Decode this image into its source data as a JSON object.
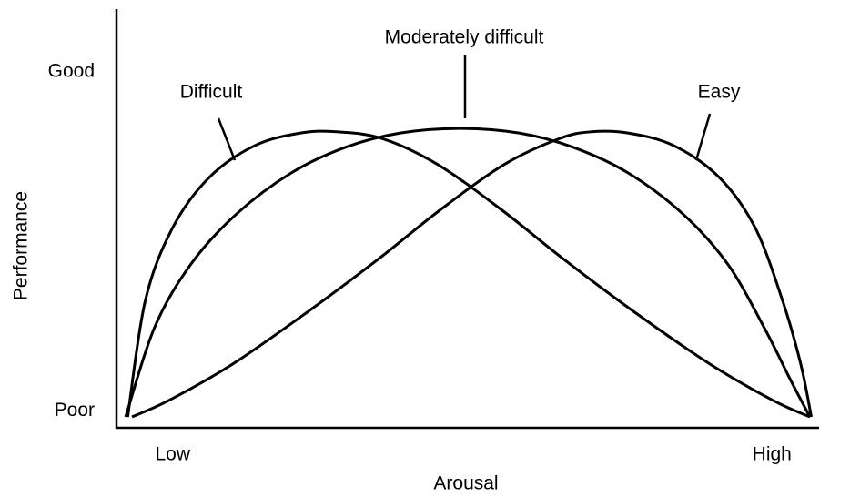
{
  "chart_data": {
    "type": "line",
    "x_label": "Arousal",
    "y_label": "Performance",
    "xlim": [
      0,
      100
    ],
    "ylim": [
      0,
      100
    ],
    "xticks": [
      {
        "value": 8,
        "label": "Low"
      },
      {
        "value": 93.3,
        "label": "High"
      }
    ],
    "yticks": [
      {
        "value": 4,
        "label": "Poor"
      },
      {
        "value": 85,
        "label": "Good"
      }
    ],
    "grid": false,
    "series": [
      {
        "name": "Difficult",
        "color": "#000000",
        "x": [
          1.6,
          4.1,
          8.0,
          13.2,
          19.7,
          26.2,
          31.3,
          37.8,
          45.6,
          54.7,
          63.7,
          74.1,
          84.5,
          93.5,
          98.7
        ],
        "values": [
          2.6,
          30.4,
          47.8,
          59.8,
          67.4,
          70.4,
          70.7,
          69.1,
          63.0,
          52.2,
          40.2,
          27.2,
          15.2,
          6.5,
          2.6
        ]
      },
      {
        "name": "Moderately difficult",
        "color": "#000000",
        "x": [
          1.3,
          5.4,
          10.6,
          17.1,
          24.9,
          32.6,
          40.4,
          48.8,
          57.3,
          65.0,
          72.8,
          80.6,
          87.0,
          92.2,
          96.1,
          98.7
        ],
        "values": [
          2.6,
          23.9,
          39.1,
          51.1,
          60.9,
          67.0,
          70.4,
          71.5,
          70.4,
          67.0,
          60.9,
          51.1,
          39.1,
          23.9,
          10.9,
          2.6
        ]
      },
      {
        "name": "Easy",
        "color": "#000000",
        "x": [
          2.2,
          7.4,
          16.5,
          26.8,
          37.2,
          46.2,
          55.3,
          63.1,
          67.6,
          72.8,
          79.3,
          85.8,
          90.9,
          94.8,
          97.4,
          98.9
        ],
        "values": [
          2.6,
          6.5,
          15.2,
          27.2,
          40.2,
          52.2,
          63.0,
          69.1,
          70.7,
          70.4,
          67.4,
          59.8,
          47.8,
          30.4,
          15.2,
          2.6
        ]
      }
    ]
  }
}
